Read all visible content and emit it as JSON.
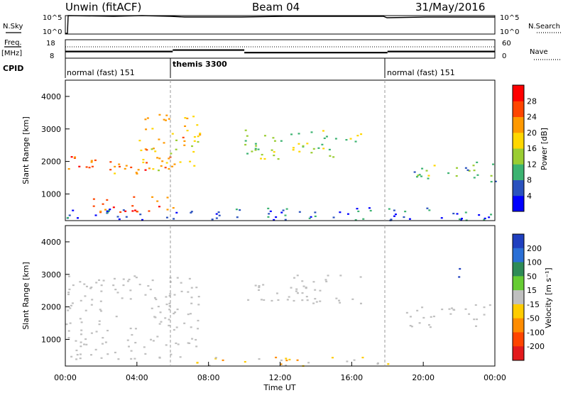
{
  "header": {
    "station": "Unwin (fitACF)",
    "beam": "Beam 04",
    "date": "31/May/2016"
  },
  "strip": {
    "nsky_label": "N.Sky",
    "nsearch_label": "N.Search",
    "freq_label": "Freq.",
    "freq_unit": "[MHz]",
    "nave_label": "Nave",
    "cpid_label": "CPID",
    "nsky_ticks": [
      "10^5",
      "10^0"
    ],
    "nsearch_ticks": [
      "10^5",
      "10^0"
    ],
    "freq_ticks": [
      "18",
      "8"
    ],
    "nave_ticks": [
      "60",
      "0"
    ],
    "cpid_segments": [
      {
        "label": "normal (fast) 151",
        "start": 0,
        "end": 6
      },
      {
        "label": "themis 3300",
        "start": 6,
        "end": 18
      },
      {
        "label": "normal (fast) 151",
        "start": 18,
        "end": 24
      }
    ],
    "freq_series": [
      {
        "t0": 0,
        "t1": 6,
        "freq": 11.6
      },
      {
        "t0": 6,
        "t1": 10,
        "freq": 12.4
      },
      {
        "t0": 10,
        "t1": 18,
        "freq": 11.0
      },
      {
        "t0": 18,
        "t1": 24,
        "freq": 11.6
      }
    ]
  },
  "axes": {
    "x_ticks": [
      "00:00",
      "04:00",
      "08:00",
      "12:00",
      "16:00",
      "20:00",
      "00:00"
    ],
    "xlabel": "Time UT",
    "y_ticks": [
      "1000",
      "2000",
      "3000",
      "4000"
    ]
  },
  "power_panel": {
    "ylabel": "Slant Range [km]",
    "cbar_label": "Power [dB]",
    "cbar_ticks": [
      "4",
      "8",
      "12",
      "16",
      "20",
      "24",
      "28"
    ],
    "cbar_colors": [
      "#0000ff",
      "#2a52be",
      "#3cb371",
      "#9acd32",
      "#ffd700",
      "#ff9900",
      "#ff4500",
      "#ff0000"
    ]
  },
  "velocity_panel": {
    "ylabel": "Slant Range [km]",
    "cbar_label": "Velocity [m s⁻¹]",
    "cbar_ticks": [
      "200",
      "100",
      "50",
      "15",
      "-15",
      "-50",
      "-100",
      "-200"
    ],
    "cbar_colors": [
      "#1f3fbf",
      "#2a6fd6",
      "#2e8b57",
      "#66cc33",
      "#bfbfbf",
      "#ffcc00",
      "#ff8c00",
      "#ff4500",
      "#e31a1c"
    ]
  },
  "chart_data": {
    "type": "heatmap",
    "title": "Unwin (fitACF) Beam 04 31/May/2016",
    "xlabel": "Time UT",
    "ylabel": "Slant Range [km]",
    "xlim": [
      0,
      24
    ],
    "ylim": [
      180,
      4500
    ],
    "power_bands": [
      {
        "t0": 0.0,
        "t1": 6.0,
        "r0": 1600,
        "r1": 2200,
        "level": 24
      },
      {
        "t0": 1.5,
        "t1": 6.5,
        "r0": 450,
        "r1": 1000,
        "level": 26
      },
      {
        "t0": 4.0,
        "t1": 7.5,
        "r0": 1700,
        "r1": 3500,
        "level": 20
      },
      {
        "t0": 10.0,
        "t1": 16.5,
        "r0": 2100,
        "r1": 3000,
        "level": 14
      },
      {
        "t0": 19.0,
        "t1": 24.0,
        "r0": 1400,
        "r1": 2000,
        "level": 12
      },
      {
        "t0": 0.0,
        "t1": 24.0,
        "r0": 200,
        "r1": 600,
        "level": 6
      }
    ],
    "velocity_bands": [
      {
        "t0": 0.0,
        "t1": 7.5,
        "r0": 400,
        "r1": 3000,
        "value": 0
      },
      {
        "t0": 10.0,
        "t1": 16.5,
        "r0": 2100,
        "r1": 3000,
        "value": 0
      },
      {
        "t0": 19.0,
        "t1": 24.0,
        "r0": 1400,
        "r1": 2100,
        "value": 0
      },
      {
        "t0": 7.0,
        "t1": 18.0,
        "r0": 200,
        "r1": 500,
        "value": -30
      },
      {
        "t0": 21.8,
        "t1": 22.3,
        "r0": 2900,
        "r1": 3300,
        "value": 200
      }
    ]
  }
}
